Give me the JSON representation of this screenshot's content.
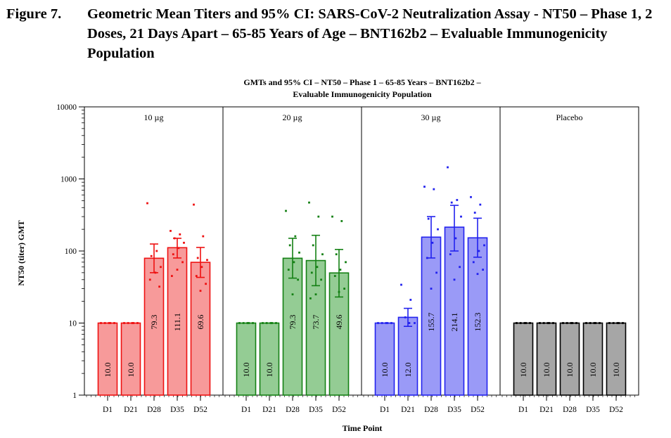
{
  "figure": {
    "label": "Figure 7.",
    "title": "Geometric Mean Titers and 95% CI: SARS-CoV-2 Neutralization Assay - NT50 – Phase 1, 2 Doses, 21 Days Apart – 65-85 Years of Age – BNT162b2 – Evaluable Immunogenicity Population"
  },
  "chart_data": {
    "type": "bar",
    "title_lines": [
      "GMTs and 95% CI – NT50 – Phase 1 – 65-85 Years – BNT162b2 –",
      "Evaluable Immunogenicity Population"
    ],
    "xlabel": "Time Point",
    "ylabel": "NT50 (titer) GMT",
    "yscale": "log",
    "ylim": [
      1,
      10000
    ],
    "yticks": [
      "1",
      "10",
      "100",
      "1000",
      "10000"
    ],
    "categories": [
      "D1",
      "D21",
      "D28",
      "D35",
      "D52"
    ],
    "panels": [
      {
        "name": "10 µg",
        "color": "#ee1111",
        "fill": "#f79a9a",
        "bars": [
          {
            "gmt": 10.0,
            "label": "10.0",
            "ci": null,
            "points": [
              10,
              10,
              10,
              10,
              10
            ]
          },
          {
            "gmt": 10.0,
            "label": "10.0",
            "ci": null,
            "points": [
              10,
              10,
              10,
              10,
              10
            ]
          },
          {
            "gmt": 79.3,
            "label": "79.3",
            "ci": [
              50,
              125
            ],
            "points": [
              460,
              100,
              85,
              60,
              50,
              40,
              32
            ]
          },
          {
            "gmt": 111.1,
            "label": "111.1",
            "ci": [
              80,
              150
            ],
            "points": [
              190,
              170,
              150,
              130,
              110,
              90,
              70,
              55,
              45
            ]
          },
          {
            "gmt": 69.6,
            "label": "69.6",
            "ci": [
              43,
              112
            ],
            "points": [
              440,
              160,
              80,
              75,
              60,
              45,
              35,
              28
            ]
          }
        ]
      },
      {
        "name": "20 µg",
        "color": "#148014",
        "fill": "#94cc94",
        "bars": [
          {
            "gmt": 10.0,
            "label": "10.0",
            "ci": null,
            "points": [
              10,
              10,
              10,
              10,
              10
            ]
          },
          {
            "gmt": 10.0,
            "label": "10.0",
            "ci": null,
            "points": [
              10,
              10,
              10,
              10,
              10
            ]
          },
          {
            "gmt": 79.3,
            "label": "79.3",
            "ci": [
              42,
              150
            ],
            "points": [
              360,
              160,
              120,
              95,
              70,
              55,
              40,
              25
            ]
          },
          {
            "gmt": 73.7,
            "label": "73.7",
            "ci": [
              33,
              165
            ],
            "points": [
              470,
              300,
              120,
              90,
              60,
              50,
              40,
              25,
              22
            ]
          },
          {
            "gmt": 49.6,
            "label": "49.6",
            "ci": [
              23,
              105
            ],
            "points": [
              300,
              260,
              90,
              70,
              55,
              45,
              30,
              27
            ]
          }
        ]
      },
      {
        "name": "30 µg",
        "color": "#2222ee",
        "fill": "#9a9af7",
        "bars": [
          {
            "gmt": 10.0,
            "label": "10.0",
            "ci": null,
            "points": [
              10,
              10,
              10,
              10,
              10
            ]
          },
          {
            "gmt": 12.0,
            "label": "12.0",
            "ci": [
              9,
              16
            ],
            "points": [
              34,
              21,
              12,
              10,
              10
            ]
          },
          {
            "gmt": 155.7,
            "label": "155.7",
            "ci": [
              80,
              300
            ],
            "points": [
              780,
              720,
              280,
              200,
              130,
              80,
              50,
              30
            ]
          },
          {
            "gmt": 214.1,
            "label": "214.1",
            "ci": [
              100,
              430
            ],
            "points": [
              1450,
              510,
              470,
              300,
              150,
              90,
              60,
              40
            ]
          },
          {
            "gmt": 152.3,
            "label": "152.3",
            "ci": [
              82,
              285
            ],
            "points": [
              560,
              440,
              340,
              120,
              100,
              70,
              55,
              48
            ]
          }
        ]
      },
      {
        "name": "Placebo",
        "color": "#000000",
        "fill": "#a6a6a6",
        "bars": [
          {
            "gmt": 10.0,
            "label": "10.0",
            "ci": null,
            "points": [
              10,
              10,
              10,
              10,
              10
            ]
          },
          {
            "gmt": 10.0,
            "label": "10.0",
            "ci": null,
            "points": [
              10,
              10,
              10,
              10,
              10
            ]
          },
          {
            "gmt": 10.0,
            "label": "10.0",
            "ci": null,
            "points": [
              10,
              10,
              10,
              10,
              10
            ]
          },
          {
            "gmt": 10.0,
            "label": "10.0",
            "ci": null,
            "points": [
              10,
              10,
              10,
              10,
              10
            ]
          },
          {
            "gmt": 10.0,
            "label": "10.0",
            "ci": null,
            "points": [
              10,
              10,
              10,
              10,
              10
            ]
          }
        ]
      }
    ]
  }
}
